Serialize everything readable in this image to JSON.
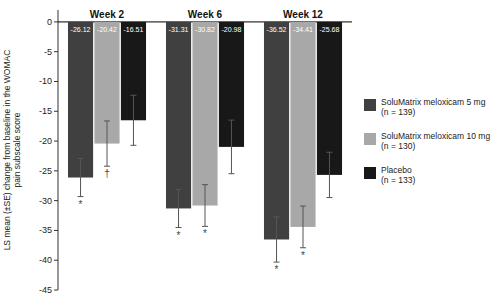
{
  "chart_data": {
    "type": "bar",
    "ylabel": "LS mean (±SE) change from baseline in the WOMAC\npain subscale score",
    "categories": [
      "Week 2",
      "Week 6",
      "Week 12"
    ],
    "series": [
      {
        "name": "SoluMatrix meloxicam 5 mg\n(n = 139)",
        "color": "#404040",
        "values": [
          -26.12,
          -31.31,
          -36.52
        ],
        "errors": [
          3.2,
          3.2,
          3.8
        ],
        "annotations": [
          "*",
          "*",
          "*"
        ]
      },
      {
        "name": "SoluMatrix meloxicam 10 mg\n(n = 130)",
        "color": "#a8a8a8",
        "values": [
          -20.42,
          -30.82,
          -34.41
        ],
        "errors": [
          3.8,
          3.5,
          3.5
        ],
        "annotations": [
          "†",
          "*",
          "*"
        ]
      },
      {
        "name": "Placebo\n(n = 133)",
        "color": "#181818",
        "values": [
          -16.51,
          -20.98,
          -25.68
        ],
        "errors": [
          4.2,
          4.5,
          3.8
        ]
      }
    ],
    "ylim": [
      -45,
      2
    ],
    "yticks": [
      0,
      -5,
      -10,
      -15,
      -20,
      -25,
      -30,
      -35,
      -40,
      -45
    ],
    "grid": false,
    "legend": "right",
    "data_labels": true
  }
}
